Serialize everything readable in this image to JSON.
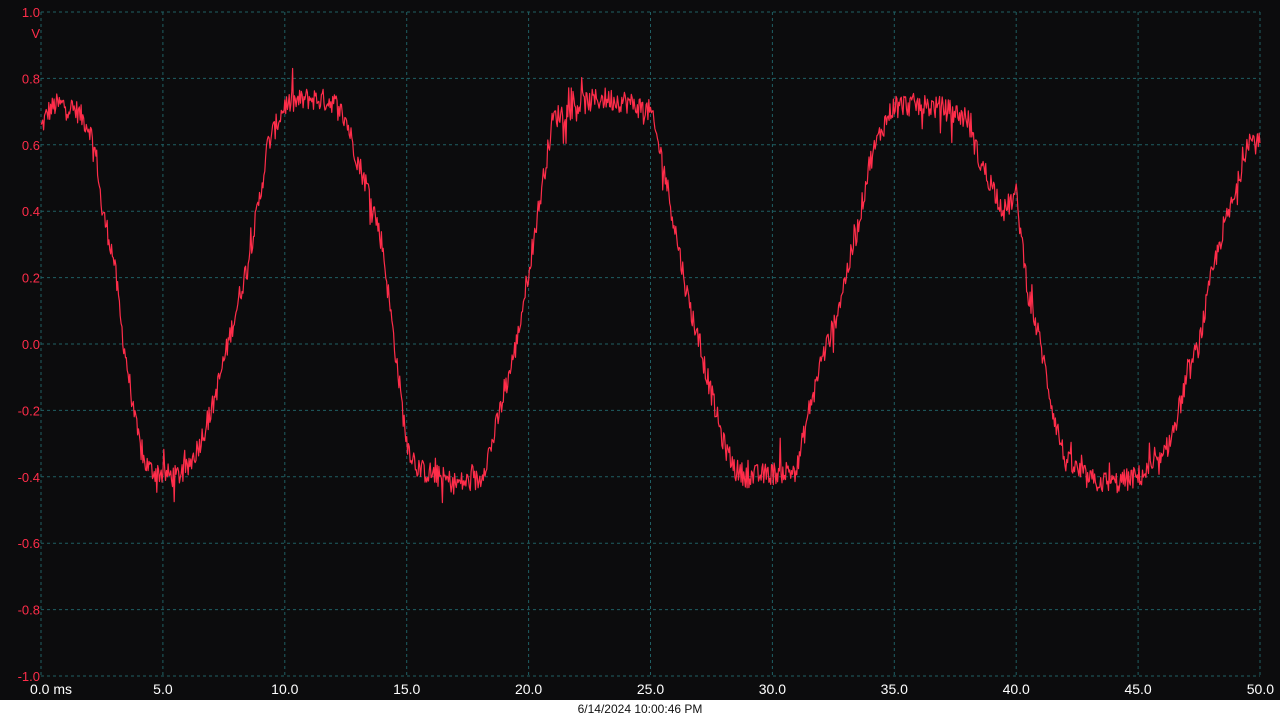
{
  "chart_data": {
    "type": "line",
    "title": "",
    "xlabel": "ms",
    "ylabel": "V",
    "xlim": [
      0,
      50
    ],
    "ylim": [
      -1.0,
      1.0
    ],
    "x_ticks": [
      0,
      5,
      10,
      15,
      20,
      25,
      30,
      35,
      40,
      45,
      50
    ],
    "x_tick_labels": [
      "0.0 ms",
      "5.0",
      "10.0",
      "15.0",
      "20.0",
      "25.0",
      "30.0",
      "35.0",
      "40.0",
      "45.0",
      "50.0"
    ],
    "y_ticks": [
      1.0,
      0.8,
      0.6,
      0.4,
      0.2,
      0.0,
      -0.2,
      -0.4,
      -0.6,
      -0.8,
      -1.0
    ],
    "y_tick_labels": [
      "1.0",
      "0.8",
      "0.6",
      "0.4",
      "0.2",
      "0.0",
      "-0.2",
      "-0.4",
      "-0.6",
      "-0.8",
      "-1.0"
    ],
    "grid": true,
    "series": [
      {
        "color": "#ff2d4a",
        "x": [
          0.0,
          0.3,
          0.6,
          1.0,
          1.5,
          2.0,
          2.3,
          2.5,
          2.7,
          3.0,
          3.3,
          3.6,
          3.9,
          4.2,
          4.5,
          5.0,
          5.5,
          6.0,
          6.5,
          7.0,
          7.5,
          8.0,
          8.5,
          9.0,
          9.3,
          9.6,
          10.0,
          11.0,
          12.0,
          12.5,
          13.0,
          13.5,
          14.0,
          14.5,
          15.0,
          15.5,
          16.0,
          17.0,
          18.0,
          18.5,
          19.0,
          19.5,
          20.0,
          20.5,
          21.0,
          22.0,
          23.0,
          24.0,
          25.0,
          25.5,
          26.0,
          26.5,
          27.0,
          27.5,
          28.0,
          28.5,
          29.0,
          30.0,
          31.0,
          31.5,
          32.0,
          32.5,
          33.0,
          33.5,
          34.0,
          34.5,
          35.0,
          36.0,
          37.0,
          38.0,
          38.5,
          39.0,
          39.5,
          40.0,
          40.5,
          41.0,
          41.5,
          42.0,
          43.0,
          44.0,
          45.0,
          45.5,
          46.0,
          46.5,
          47.0,
          47.5,
          48.0,
          48.5,
          49.0,
          49.5,
          50.0
        ],
        "y": [
          0.65,
          0.7,
          0.72,
          0.72,
          0.7,
          0.65,
          0.55,
          0.4,
          0.35,
          0.25,
          0.05,
          -0.1,
          -0.25,
          -0.35,
          -0.38,
          -0.39,
          -0.4,
          -0.38,
          -0.3,
          -0.2,
          -0.05,
          0.1,
          0.25,
          0.45,
          0.6,
          0.65,
          0.72,
          0.74,
          0.73,
          0.68,
          0.55,
          0.45,
          0.3,
          0.0,
          -0.3,
          -0.38,
          -0.39,
          -0.42,
          -0.41,
          -0.3,
          -0.15,
          0.0,
          0.22,
          0.45,
          0.68,
          0.72,
          0.74,
          0.73,
          0.7,
          0.55,
          0.35,
          0.15,
          0.0,
          -0.15,
          -0.3,
          -0.38,
          -0.4,
          -0.39,
          -0.38,
          -0.2,
          -0.05,
          0.05,
          0.2,
          0.35,
          0.55,
          0.65,
          0.72,
          0.72,
          0.71,
          0.68,
          0.55,
          0.48,
          0.4,
          0.45,
          0.15,
          0.0,
          -0.2,
          -0.35,
          -0.41,
          -0.42,
          -0.4,
          -0.38,
          -0.35,
          -0.25,
          -0.1,
          0.0,
          0.2,
          0.35,
          0.45,
          0.62,
          0.6
        ]
      }
    ],
    "timestamp": "6/14/2024 10:00:46 PM"
  },
  "colors": {
    "background": "#0c0c0d",
    "grid": "#1f5f63",
    "trace": "#ff2d4a",
    "y_axis_text": "#ff2d4a",
    "x_axis_text": "#ffffff"
  }
}
